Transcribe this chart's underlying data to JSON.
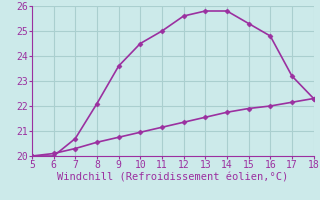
{
  "x_upper": [
    5,
    6,
    7,
    8,
    9,
    10,
    11,
    12,
    13,
    14,
    15,
    16,
    17,
    18
  ],
  "y_upper": [
    20.0,
    20.0,
    20.7,
    22.1,
    23.6,
    24.5,
    25.0,
    25.6,
    25.8,
    25.8,
    25.3,
    24.8,
    23.2,
    22.3
  ],
  "x_lower": [
    5,
    6,
    7,
    8,
    9,
    10,
    11,
    12,
    13,
    14,
    15,
    16,
    17,
    18
  ],
  "y_lower": [
    20.0,
    20.1,
    20.3,
    20.55,
    20.75,
    20.95,
    21.15,
    21.35,
    21.55,
    21.75,
    21.9,
    22.0,
    22.15,
    22.3
  ],
  "line_color": "#9b30a0",
  "bg_color": "#cceaea",
  "grid_color": "#aacfcf",
  "xlabel": "Windchill (Refroidissement éolien,°C)",
  "xlim": [
    5,
    18
  ],
  "ylim": [
    20,
    26
  ],
  "xticks": [
    5,
    6,
    7,
    8,
    9,
    10,
    11,
    12,
    13,
    14,
    15,
    16,
    17,
    18
  ],
  "yticks": [
    20,
    21,
    22,
    23,
    24,
    25,
    26
  ],
  "marker": "D",
  "markersize": 2.5,
  "linewidth": 1.2,
  "xlabel_fontsize": 7.5,
  "tick_fontsize": 7
}
